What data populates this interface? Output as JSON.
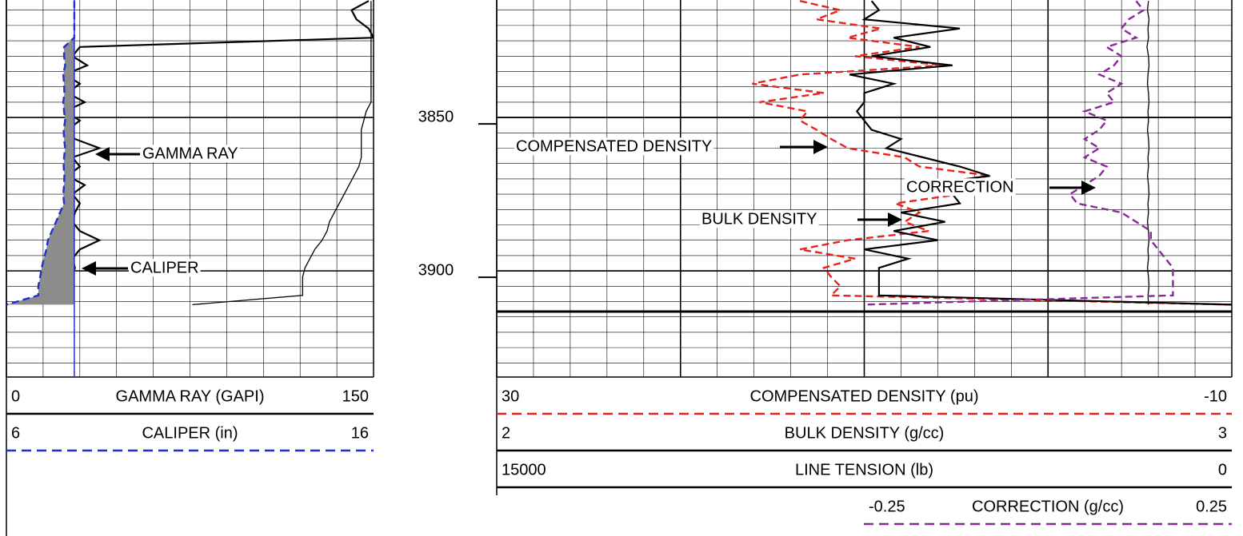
{
  "chart_data": [
    {
      "type": "line",
      "ylim": [
        3811.7,
        3934.6
      ],
      "yticks": [
        3850,
        3900
      ],
      "yminor": [
        3815,
        3820,
        3825,
        3830,
        3835,
        3840,
        3845,
        3855,
        3860,
        3865,
        3870,
        3875,
        3880,
        3885,
        3890,
        3895,
        3905,
        3910,
        3915,
        3920,
        3925,
        3930
      ],
      "xgrid": [
        0,
        15,
        30,
        45,
        60,
        75,
        90,
        105,
        120,
        135,
        150
      ],
      "depth": [
        3812,
        3815,
        3818,
        3821,
        3824,
        3827,
        3830,
        3833,
        3836,
        3839,
        3842,
        3845,
        3848,
        3851,
        3854,
        3857,
        3860,
        3863,
        3866,
        3869,
        3872,
        3875,
        3878,
        3881,
        3884,
        3887,
        3890,
        3893,
        3896,
        3899,
        3902,
        3905,
        3908,
        3911
      ],
      "series": [
        {
          "name": "GAMMA RAY (GAPI)",
          "color": "#000000",
          "xlim": [
            0,
            150
          ],
          "dash": false,
          "values": [
            148,
            141,
            143,
            148,
            150,
            30,
            27,
            33,
            24,
            30,
            25,
            32,
            24,
            30,
            25,
            28,
            38,
            27,
            30,
            25,
            32,
            27,
            30,
            28,
            27,
            30,
            38,
            30,
            27,
            28,
            27,
            27,
            27,
            null
          ]
        },
        {
          "name": "CALIPER (in)",
          "color": "#1f2fd0",
          "xlim": [
            6,
            16
          ],
          "dash": true,
          "bit_size": 7.85,
          "values": [
            7.85,
            7.85,
            7.85,
            7.85,
            7.85,
            7.57,
            7.57,
            7.6,
            7.55,
            7.57,
            7.58,
            7.55,
            7.57,
            7.6,
            7.56,
            7.57,
            7.6,
            7.57,
            7.56,
            7.58,
            7.57,
            7.55,
            7.57,
            7.46,
            7.35,
            7.24,
            7.13,
            7.09,
            7.02,
            6.96,
            6.92,
            6.87,
            6.87,
            6.0
          ]
        },
        {
          "color": "#000000",
          "xlim": [
            0,
            150
          ],
          "dash": false,
          "thin": true,
          "values": [
            149,
            149,
            149,
            149,
            149,
            149,
            149,
            149,
            149,
            149,
            149,
            149,
            147,
            146,
            145,
            145,
            145,
            145,
            144,
            142,
            140,
            138,
            136,
            134,
            132,
            131,
            129,
            126,
            124,
            122,
            121,
            121,
            121,
            76
          ]
        }
      ],
      "annotations": [
        {
          "text": "GAMMA RAY"
        },
        {
          "text": "CALIPER"
        }
      ]
    },
    {
      "type": "line",
      "ylim": [
        3811.7,
        3934.6
      ],
      "yminor": [
        3815,
        3820,
        3825,
        3830,
        3835,
        3840,
        3845,
        3855,
        3860,
        3865,
        3870,
        3875,
        3880,
        3885,
        3890,
        3895,
        3905,
        3910,
        3915,
        3920,
        3925,
        3930
      ],
      "ymajor": [
        3850,
        3900
      ],
      "xgrid": [
        30,
        28,
        26,
        24,
        22,
        20,
        18,
        16,
        14,
        12,
        10,
        8,
        6,
        4,
        2,
        0,
        -2,
        -4,
        -6,
        -8,
        -10
      ],
      "xgrid_major": [
        20,
        10,
        0
      ],
      "depth": [
        3812,
        3815,
        3818,
        3821,
        3824,
        3827,
        3830,
        3833,
        3836,
        3839,
        3842,
        3845,
        3848,
        3851,
        3854,
        3857,
        3860,
        3863,
        3866,
        3869,
        3872,
        3875,
        3878,
        3881,
        3884,
        3887,
        3890,
        3893,
        3896,
        3899,
        3902,
        3905,
        3908,
        3911
      ],
      "series": [
        {
          "name": "COMPENSATED DENSITY (pu)",
          "color": "#e8231e",
          "xlim": [
            30,
            -10
          ],
          "dash": true,
          "values": [
            13.5,
            11.3,
            12.6,
            9.1,
            10.9,
            7.0,
            10.5,
            5.7,
            13.5,
            16.1,
            12.2,
            15.7,
            13.1,
            13.5,
            12.6,
            11.8,
            10.9,
            7.8,
            7.0,
            3.1,
            7.0,
            4.8,
            8.3,
            7.0,
            7.8,
            6.5,
            10.9,
            13.5,
            10.5,
            12.2,
            11.8,
            11.3,
            11.8,
            -10.0
          ]
        },
        {
          "name": "BULK DENSITY (g/cc)",
          "color": "#000000",
          "xlim": [
            2,
            3
          ],
          "dash": false,
          "values": [
            2.51,
            2.52,
            2.5,
            2.63,
            2.54,
            2.59,
            2.51,
            2.62,
            2.48,
            2.54,
            2.5,
            2.5,
            2.49,
            2.5,
            2.51,
            2.55,
            2.53,
            2.58,
            2.63,
            2.67,
            2.58,
            2.62,
            2.63,
            2.55,
            2.61,
            2.54,
            2.6,
            2.5,
            2.56,
            2.52,
            2.52,
            2.52,
            2.52,
            3.0
          ]
        },
        {
          "name": "LINE TENSION (lb)",
          "color": "#000000",
          "xlim": [
            15000,
            0
          ],
          "dash": false,
          "thin": true,
          "values": [
            1700,
            1720,
            1690,
            1710,
            1700,
            1730,
            1700,
            1690,
            1710,
            1720,
            1700,
            1690,
            1710,
            1700,
            1720,
            1700,
            1690,
            1710,
            1700,
            1720,
            1700,
            1690,
            1710,
            1700,
            1720,
            1700,
            1690,
            1710,
            1700,
            1720,
            1700,
            1690,
            1710,
            1700
          ]
        },
        {
          "name": "CORRECTION (g/cc)",
          "color": "#8a2a9a",
          "xlim": [
            -0.25,
            0.25
          ],
          "dash": true,
          "values": [
            0.12,
            0.13,
            0.11,
            0.1,
            0.12,
            0.08,
            0.1,
            0.09,
            0.07,
            0.1,
            0.08,
            0.09,
            0.05,
            0.08,
            0.07,
            0.05,
            0.07,
            0.05,
            0.08,
            0.07,
            0.05,
            0.03,
            0.04,
            0.1,
            0.12,
            0.14,
            0.14,
            0.15,
            0.16,
            0.17,
            0.17,
            0.17,
            0.17,
            -0.25
          ]
        }
      ],
      "annotations": [
        {
          "text": "COMPENSATED DENSITY"
        },
        {
          "text": "BULK DENSITY"
        },
        {
          "text": "CORRECTION"
        }
      ]
    }
  ]
}
